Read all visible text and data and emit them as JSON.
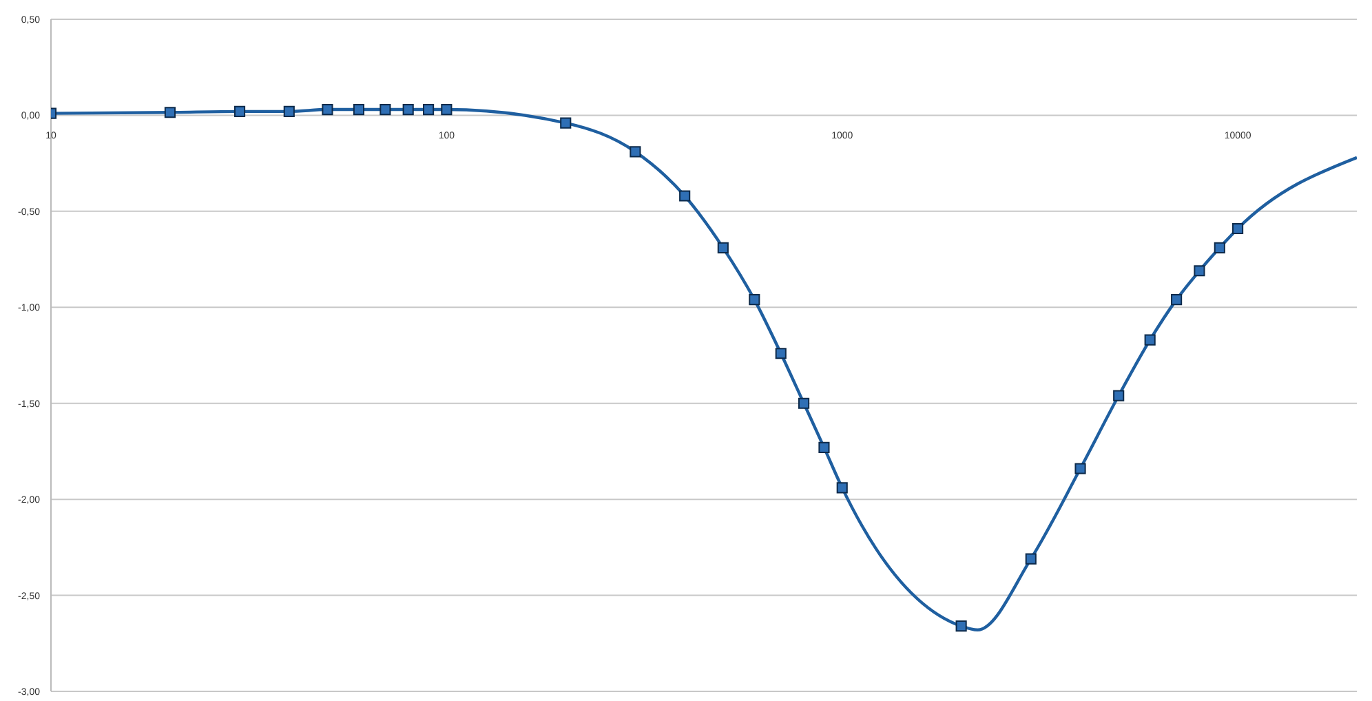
{
  "chart_data": {
    "type": "line",
    "log": "x",
    "grid": "y",
    "xlim": [
      10,
      20000
    ],
    "xticks": [
      10,
      100,
      1000,
      10000
    ],
    "ylim": [
      -3,
      0.5
    ],
    "yticks": [
      {
        "value": 0.5,
        "label": "0,50"
      },
      {
        "value": 0,
        "label": "0,00"
      },
      {
        "value": -0.5,
        "label": "-0,50"
      },
      {
        "value": -1,
        "label": "-1,00"
      },
      {
        "value": -1.5,
        "label": "-1,50"
      },
      {
        "value": -2,
        "label": "-2,00"
      },
      {
        "value": -2.5,
        "label": "-2,50"
      },
      {
        "value": -3,
        "label": "-3,00"
      }
    ],
    "series": [
      {
        "color": "#1f5fa0",
        "marker": "none",
        "x": [
          10,
          20,
          30,
          40,
          50,
          60,
          70,
          80,
          90,
          100,
          200,
          300,
          400,
          500,
          600,
          700,
          800,
          900,
          1000,
          2000,
          2200,
          3000,
          4000,
          5000,
          6000,
          7000,
          8000,
          9000,
          10000,
          20000
        ],
        "values": [
          0.01,
          0.015,
          0.02,
          0.02,
          0.03,
          0.03,
          0.03,
          0.03,
          0.03,
          0.03,
          -0.04,
          -0.19,
          -0.42,
          -0.69,
          -0.96,
          -1.24,
          -1.5,
          -1.73,
          -1.94,
          -2.66,
          -2.68,
          -2.31,
          -1.84,
          -1.46,
          -1.17,
          -0.96,
          -0.81,
          -0.69,
          -0.59,
          -0.22
        ]
      },
      {
        "type": "scatter",
        "color": "#2f6fb5",
        "marker": "square",
        "x": [
          10,
          20,
          30,
          40,
          50,
          60,
          70,
          80,
          90,
          100,
          200,
          300,
          400,
          500,
          600,
          700,
          800,
          900,
          1000,
          2000,
          3000,
          4000,
          5000,
          6000,
          7000,
          8000,
          9000,
          10000
        ],
        "values": [
          0.01,
          0.015,
          0.02,
          0.02,
          0.03,
          0.03,
          0.03,
          0.03,
          0.03,
          0.03,
          -0.04,
          -0.19,
          -0.42,
          -0.69,
          -0.96,
          -1.24,
          -1.5,
          -1.73,
          -1.94,
          -2.66,
          -2.31,
          -1.84,
          -1.46,
          -1.17,
          -0.96,
          -0.81,
          -0.69,
          -0.59
        ]
      }
    ]
  }
}
